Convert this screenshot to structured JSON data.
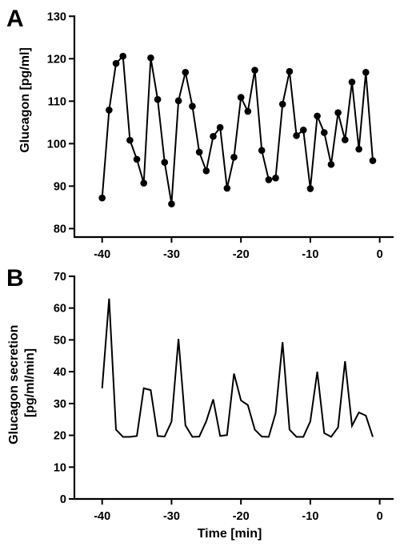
{
  "chart_data": [
    {
      "panel": "A",
      "type": "line",
      "ylabel": "Glucagon [pg/ml]",
      "xlabel": "",
      "xlim": [
        -44,
        2
      ],
      "ylim": [
        78,
        131
      ],
      "xticks": [
        -40,
        -30,
        -20,
        -10,
        0
      ],
      "xtick_labels": [
        "-40",
        "-30",
        "-20",
        "-10",
        "0"
      ],
      "yticks": [
        80,
        90,
        100,
        110,
        120,
        130
      ],
      "ytick_labels": [
        "80",
        "90",
        "100",
        "110",
        "120",
        "130"
      ],
      "markers": true,
      "grid": false,
      "x": [
        -40,
        -39,
        -38,
        -37,
        -36,
        -35,
        -34,
        -33,
        -32,
        -31,
        -30,
        -29,
        -28,
        -27,
        -26,
        -25,
        -24,
        -23,
        -22,
        -21,
        -20,
        -19,
        -18,
        -17,
        -16,
        -15,
        -14,
        -13,
        -12,
        -11,
        -10,
        -9,
        -8,
        -7,
        -6,
        -5,
        -4,
        -3,
        -2,
        -1
      ],
      "y": [
        87.2,
        107.9,
        118.9,
        120.6,
        100.8,
        96.3,
        90.7,
        120.2,
        110.4,
        95.6,
        85.8,
        110.1,
        116.8,
        108.8,
        98.0,
        93.6,
        101.7,
        103.8,
        89.5,
        96.8,
        110.9,
        107.6,
        117.3,
        98.4,
        91.5,
        91.9,
        109.3,
        117.0,
        101.9,
        103.2,
        89.4,
        106.5,
        102.6,
        95.1,
        107.3,
        100.9,
        114.5,
        98.7,
        116.8,
        96.0
      ]
    },
    {
      "panel": "B",
      "type": "line",
      "ylabel": "Glucagon secretion [pg/ml/min]",
      "ylabel_lines": [
        "Glucagon secretion",
        "[pg/ml/min]"
      ],
      "xlabel": "Time [min]",
      "xlim": [
        -44,
        2
      ],
      "ylim": [
        0,
        72
      ],
      "xticks": [
        -40,
        -30,
        -20,
        -10,
        0
      ],
      "xtick_labels": [
        "-40",
        "-30",
        "-20",
        "-10",
        "0"
      ],
      "yticks": [
        0,
        10,
        20,
        30,
        40,
        50,
        60,
        70
      ],
      "ytick_labels": [
        "0",
        "10",
        "20",
        "30",
        "40",
        "50",
        "60",
        "70"
      ],
      "markers": false,
      "grid": false,
      "x": [
        -40,
        -39,
        -38,
        -37,
        -36,
        -35,
        -34,
        -33,
        -32,
        -31,
        -30,
        -29,
        -28,
        -27,
        -26,
        -25,
        -24,
        -23,
        -22,
        -21,
        -20,
        -19,
        -18,
        -17,
        -16,
        -15,
        -14,
        -13,
        -12,
        -11,
        -10,
        -9,
        -8,
        -7,
        -6,
        -5,
        -4,
        -3,
        -2,
        -1
      ],
      "y": [
        34.8,
        63.0,
        21.8,
        19.5,
        19.5,
        19.8,
        34.8,
        34.2,
        19.8,
        19.6,
        24.3,
        50.3,
        23.1,
        19.5,
        19.6,
        24.4,
        31.3,
        19.8,
        20.1,
        39.4,
        31.0,
        29.5,
        21.8,
        19.6,
        19.5,
        26.9,
        49.3,
        21.8,
        19.5,
        19.5,
        24.4,
        40.0,
        20.7,
        19.5,
        22.5,
        43.3,
        23.0,
        27.2,
        26.2,
        19.5
      ]
    }
  ]
}
